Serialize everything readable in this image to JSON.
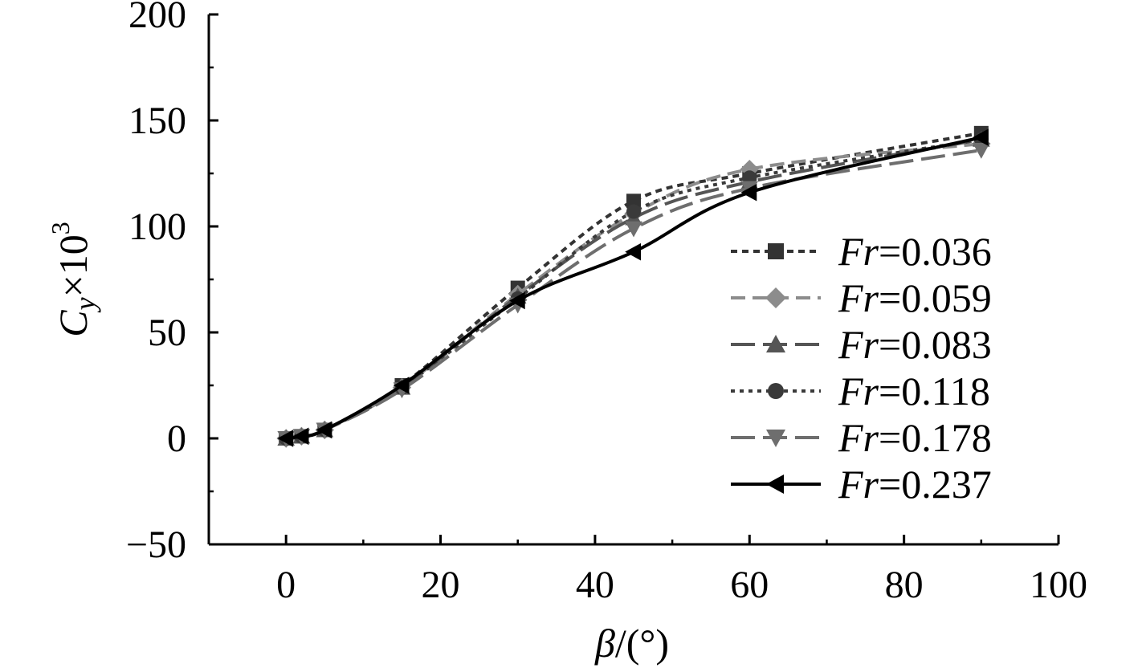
{
  "chart_data": {
    "type": "line",
    "title": "",
    "xlabel": "β/(°)",
    "ylabel": "Cy×10³",
    "ylabel_parts": {
      "symbol": "C",
      "subscript": "y",
      "times": "×10",
      "exponent": "3"
    },
    "xlabel_parts": {
      "symbol": "β",
      "rest": "/(°)"
    },
    "xlim": [
      -10,
      100
    ],
    "ylim": [
      -50,
      200
    ],
    "xticks": [
      "0",
      "20",
      "40",
      "60",
      "80",
      "100"
    ],
    "xtick_values": [
      0,
      20,
      40,
      60,
      80,
      100
    ],
    "yticks": [
      "−50",
      "0",
      "50",
      "100",
      "150",
      "200"
    ],
    "ytick_values": [
      -50,
      0,
      50,
      100,
      150,
      200
    ],
    "legend_position": "right",
    "grid": false,
    "series": [
      {
        "name": "Fr=0.036",
        "name_symbol": "Fr",
        "name_value": "=0.036",
        "marker": "square",
        "color": "#333333",
        "dash": "dotted",
        "x": [
          0,
          2,
          5,
          15,
          30,
          45,
          60,
          90
        ],
        "y": [
          0,
          1,
          4,
          25,
          71,
          112,
          125,
          144
        ]
      },
      {
        "name": "Fr=0.059",
        "name_symbol": "Fr",
        "name_value": "=0.059",
        "marker": "diamond",
        "color": "#8c8c8c",
        "dash": "dashed",
        "x": [
          0,
          2,
          5,
          15,
          30,
          45,
          60,
          90
        ],
        "y": [
          0,
          1,
          4,
          24,
          68,
          106,
          127,
          139
        ]
      },
      {
        "name": "Fr=0.083",
        "name_symbol": "Fr",
        "name_value": "=0.083",
        "marker": "triangle-up",
        "color": "#555555",
        "dash": "longdash",
        "x": [
          0,
          2,
          5,
          15,
          30,
          45,
          60,
          90
        ],
        "y": [
          0,
          1,
          4,
          24,
          67,
          104,
          121,
          141
        ]
      },
      {
        "name": "Fr=0.118",
        "name_symbol": "Fr",
        "name_value": "=0.118",
        "marker": "circle",
        "color": "#3a3a3a",
        "dash": "densedot",
        "x": [
          0,
          2,
          5,
          15,
          30,
          45,
          60,
          90
        ],
        "y": [
          0,
          1,
          4,
          24,
          66,
          107,
          123,
          141
        ]
      },
      {
        "name": "Fr=0.178",
        "name_symbol": "Fr",
        "name_value": "=0.178",
        "marker": "triangle-down",
        "color": "#6e6e6e",
        "dash": "longdash",
        "x": [
          0,
          2,
          5,
          15,
          30,
          45,
          60,
          90
        ],
        "y": [
          0,
          1,
          4,
          23,
          63,
          99,
          118,
          136
        ]
      },
      {
        "name": "Fr=0.237",
        "name_symbol": "Fr",
        "name_value": "=0.237",
        "marker": "triangle-left",
        "color": "#000000",
        "dash": "solid",
        "x": [
          0,
          2,
          5,
          15,
          30,
          45,
          60,
          90
        ],
        "y": [
          0,
          1,
          4,
          25,
          65,
          88,
          116,
          142
        ]
      }
    ]
  }
}
